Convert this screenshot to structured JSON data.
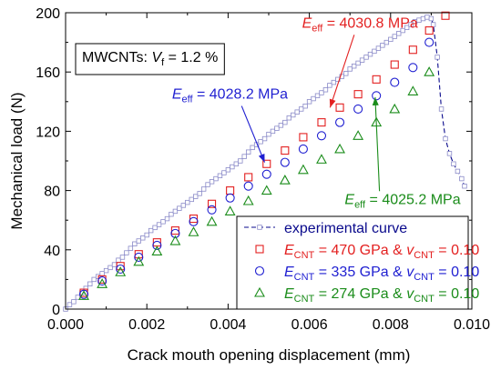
{
  "chart_data": {
    "type": "scatter",
    "xlabel": "Crack mouth opening displacement (mm)",
    "ylabel": "Mechanical load (N)",
    "xlim": [
      0,
      0.01
    ],
    "ylim": [
      0,
      200
    ],
    "x_ticks": [
      "0.000",
      "0.002",
      "0.004",
      "0.006",
      "0.008",
      "0.010"
    ],
    "y_ticks": [
      "0",
      "40",
      "80",
      "120",
      "160",
      "200"
    ],
    "grid": false,
    "legend_position": "bottom-right",
    "material_box": {
      "prefix": "MWCNTs: ",
      "var": "V",
      "sub": "f",
      "suffix": " = 1.2 %"
    },
    "series": [
      {
        "name": "experimental curve",
        "color": "#0a0a8c",
        "style": "dashed-line-with-small-squares",
        "x": [
          0.0,
          0.0001,
          0.0002,
          0.0003,
          0.0004,
          0.0005,
          0.0006,
          0.0007,
          0.0008,
          0.0009,
          0.001,
          0.0011,
          0.0012,
          0.0013,
          0.0014,
          0.0015,
          0.0016,
          0.0017,
          0.0018,
          0.0019,
          0.002,
          0.0021,
          0.0022,
          0.0023,
          0.0024,
          0.0025,
          0.0026,
          0.0027,
          0.0028,
          0.0029,
          0.003,
          0.0031,
          0.0032,
          0.0033,
          0.0034,
          0.0035,
          0.0036,
          0.0037,
          0.0038,
          0.0039,
          0.004,
          0.0041,
          0.0042,
          0.0043,
          0.0044,
          0.0045,
          0.0046,
          0.0047,
          0.0048,
          0.0049,
          0.005,
          0.0051,
          0.0052,
          0.0053,
          0.0054,
          0.0055,
          0.0056,
          0.0057,
          0.0058,
          0.0059,
          0.006,
          0.0061,
          0.0062,
          0.0063,
          0.0064,
          0.0065,
          0.0066,
          0.0067,
          0.0068,
          0.0069,
          0.007,
          0.0071,
          0.0072,
          0.0073,
          0.0074,
          0.0075,
          0.0076,
          0.0077,
          0.0078,
          0.0079,
          0.008,
          0.0081,
          0.0082,
          0.0083,
          0.0084,
          0.0085,
          0.0086,
          0.0087,
          0.0088,
          0.0089,
          0.009,
          0.00905,
          0.00915,
          0.00925,
          0.00935,
          0.00945,
          0.00955,
          0.00965,
          0.00975,
          0.00982
        ],
        "y": [
          0,
          3,
          5,
          8,
          11,
          14,
          17,
          20,
          22,
          24,
          26,
          28,
          30,
          33,
          35,
          38,
          41,
          44,
          46,
          48,
          50,
          53,
          55,
          57,
          59,
          61,
          64,
          66,
          68,
          70,
          72,
          74,
          76,
          78,
          81,
          84,
          86,
          88,
          90,
          92,
          94,
          96,
          98,
          100,
          103,
          106,
          109,
          111,
          113,
          115,
          118,
          120,
          122,
          124,
          126,
          129,
          131,
          133,
          135,
          137,
          140,
          142,
          144,
          146,
          148,
          151,
          153,
          155,
          157,
          159,
          162,
          164,
          166,
          168,
          170,
          172,
          174,
          176,
          178,
          180,
          182,
          184,
          186,
          188,
          190,
          192,
          194,
          195,
          196,
          197,
          196,
          192,
          170,
          135,
          115,
          105,
          98,
          93,
          88,
          83
        ]
      },
      {
        "name": "E_CNT = 470 GPa & v_CNT = 0.10",
        "legend": {
          "label1": "E",
          "sub1": "CNT",
          "mid": " = 470 GPa & ",
          "label2": "v",
          "sub2": "CNT",
          "end": " = 0.10"
        },
        "color": "#e32020",
        "marker": "square",
        "x": [
          0.00045,
          0.0009,
          0.00135,
          0.0018,
          0.00225,
          0.0027,
          0.00315,
          0.0036,
          0.00405,
          0.0045,
          0.00495,
          0.0054,
          0.00585,
          0.0063,
          0.00675,
          0.0072,
          0.00765,
          0.0081,
          0.00855,
          0.00895,
          0.00935
        ],
        "y": [
          11,
          20,
          29,
          37,
          45,
          53,
          61,
          71,
          80,
          89,
          98,
          107,
          116,
          126,
          136,
          145,
          155,
          165,
          175,
          188,
          198
        ]
      },
      {
        "name": "E_CNT = 335 GPa & v_CNT = 0.10",
        "legend": {
          "label1": "E",
          "sub1": "CNT",
          "mid": " = 335 GPa & ",
          "label2": "v",
          "sub2": "CNT",
          "end": " = 0.10"
        },
        "color": "#1f1fd1",
        "marker": "circle",
        "x": [
          0.00045,
          0.0009,
          0.00135,
          0.0018,
          0.00225,
          0.0027,
          0.00315,
          0.0036,
          0.00405,
          0.0045,
          0.00495,
          0.0054,
          0.00585,
          0.0063,
          0.00675,
          0.0072,
          0.00765,
          0.0081,
          0.00855,
          0.00895
        ],
        "y": [
          10,
          19,
          27,
          35,
          43,
          51,
          59,
          67,
          75,
          83,
          91,
          99,
          108,
          117,
          126,
          135,
          144,
          153,
          163,
          180
        ]
      },
      {
        "name": "E_CNT = 274 GPa & v_CNT = 0.10",
        "legend": {
          "label1": "E",
          "sub1": "CNT",
          "mid": " = 274 GPa & ",
          "label2": "v",
          "sub2": "CNT",
          "end": " = 0.10"
        },
        "color": "#1a8c1a",
        "marker": "triangle",
        "x": [
          0.00045,
          0.0009,
          0.00135,
          0.0018,
          0.00225,
          0.0027,
          0.00315,
          0.0036,
          0.00405,
          0.0045,
          0.00495,
          0.0054,
          0.00585,
          0.0063,
          0.00675,
          0.0072,
          0.00765,
          0.0081,
          0.00855,
          0.00895
        ],
        "y": [
          9,
          17,
          25,
          32,
          39,
          46,
          52,
          59,
          66,
          73,
          80,
          87,
          94,
          101,
          108,
          117,
          126,
          135,
          147,
          160
        ]
      }
    ],
    "annotations": [
      {
        "id": "ann-red",
        "color": "#e32020",
        "label": "E",
        "sub": "eff",
        "text": " = 4030.8 MPa",
        "x": 0.00582,
        "y": 190,
        "arrow_to": [
          0.00651,
          136
        ]
      },
      {
        "id": "ann-blue",
        "color": "#1f1fd1",
        "label": "E",
        "sub": "eff",
        "text": " = 4028.2 MPa",
        "x": 0.00262,
        "y": 142,
        "arrow_to": [
          0.0049,
          99
        ]
      },
      {
        "id": "ann-green",
        "color": "#1a8c1a",
        "label": "E",
        "sub": "eff",
        "text": " = 4025.2 MPa",
        "x": 0.00687,
        "y": 71,
        "arrow_to": [
          0.00762,
          143
        ]
      }
    ]
  }
}
